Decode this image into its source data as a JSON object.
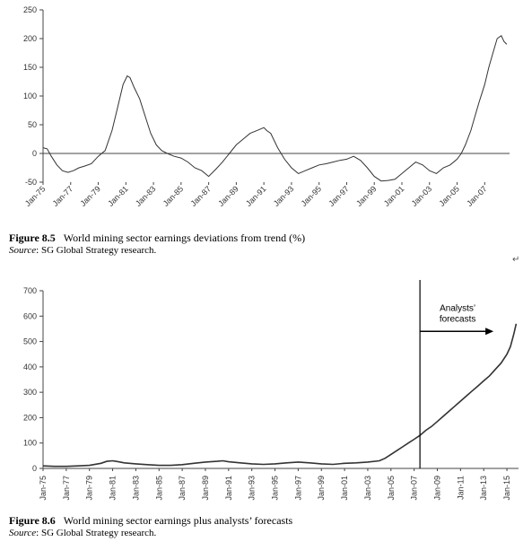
{
  "figure1": {
    "number": "Figure 8.5",
    "title": "World mining sector earnings deviations from trend (%)",
    "source_label": "Source",
    "source_text": ": SG Global Strategy research."
  },
  "figure2": {
    "number": "Figure 8.6",
    "title": "World mining sector earnings plus analysts’ forecasts",
    "source_label": "Source",
    "source_text": ": SG Global Strategy research."
  },
  "edit_mark": "↵",
  "chart_data": [
    {
      "type": "line",
      "title": "",
      "xlabel": "",
      "ylabel": "",
      "xlim": [
        1975,
        2008.8
      ],
      "ylim": [
        -50,
        250
      ],
      "yticks": [
        -50,
        0,
        50,
        100,
        150,
        200,
        250
      ],
      "xtick_labels": [
        "Jan-75",
        "Jan-77",
        "Jan-79",
        "Jan-81",
        "Jan-83",
        "Jan-85",
        "Jan-87",
        "Jan-89",
        "Jan-91",
        "Jan-93",
        "Jan-95",
        "Jan-97",
        "Jan-99",
        "Jan-01",
        "Jan-03",
        "Jan-05",
        "Jan-07"
      ],
      "xtick_values": [
        1975,
        1977,
        1979,
        1981,
        1983,
        1985,
        1987,
        1989,
        1991,
        1993,
        1995,
        1997,
        1999,
        2001,
        2003,
        2005,
        2007
      ],
      "grid": false,
      "zero_line": true,
      "series": [
        {
          "x": [
            1975,
            1975.3,
            1975.6,
            1976,
            1976.4,
            1976.8,
            1977.2,
            1977.6,
            1978,
            1978.5,
            1979,
            1979.5,
            1980,
            1980.4,
            1980.8,
            1981.1,
            1981.3,
            1981.6,
            1982,
            1982.4,
            1982.8,
            1983.2,
            1983.6,
            1984,
            1984.5,
            1985,
            1985.5,
            1986,
            1986.5,
            1987,
            1987.5,
            1988,
            1988.5,
            1989,
            1989.5,
            1990,
            1990.5,
            1991,
            1991.2,
            1991.5,
            1992,
            1992.5,
            1993,
            1993.5,
            1994,
            1994.5,
            1995,
            1995.5,
            1996,
            1996.5,
            1997,
            1997.5,
            1998,
            1998.5,
            1999,
            1999.5,
            2000,
            2000.5,
            2001,
            2001.5,
            2002,
            2002.5,
            2003,
            2003.5,
            2004,
            2004.5,
            2005,
            2005.3,
            2005.6,
            2006,
            2006.3,
            2006.6,
            2007,
            2007.3,
            2007.6,
            2007.9,
            2008.2,
            2008.4,
            2008.6
          ],
          "y": [
            10,
            8,
            -5,
            -20,
            -30,
            -33,
            -30,
            -25,
            -22,
            -18,
            -5,
            5,
            40,
            80,
            120,
            135,
            132,
            115,
            95,
            65,
            35,
            15,
            5,
            0,
            -5,
            -8,
            -15,
            -25,
            -30,
            -40,
            -28,
            -15,
            0,
            15,
            25,
            35,
            40,
            45,
            40,
            35,
            10,
            -10,
            -25,
            -35,
            -30,
            -25,
            -20,
            -18,
            -15,
            -12,
            -10,
            -5,
            -12,
            -25,
            -40,
            -48,
            -47,
            -45,
            -35,
            -25,
            -15,
            -20,
            -30,
            -35,
            -25,
            -20,
            -10,
            0,
            15,
            40,
            65,
            90,
            120,
            150,
            175,
            200,
            205,
            195,
            190
          ]
        }
      ]
    },
    {
      "type": "line",
      "title": "",
      "xlabel": "",
      "ylabel": "",
      "xlim": [
        1975,
        2016
      ],
      "ylim": [
        0,
        700
      ],
      "yticks": [
        0,
        100,
        200,
        300,
        400,
        500,
        600,
        700
      ],
      "xtick_labels": [
        "Jan-75",
        "Jan-77",
        "Jan-79",
        "Jan-81",
        "Jan-83",
        "Jan-85",
        "Jan-87",
        "Jan-89",
        "Jan-91",
        "Jan-93",
        "Jan-95",
        "Jan-97",
        "Jan-99",
        "Jan-01",
        "Jan-03",
        "Jan-05",
        "Jan-07",
        "Jan-09",
        "Jan-11",
        "Jan-13",
        "Jan-15"
      ],
      "xtick_values": [
        1975,
        1977,
        1979,
        1981,
        1983,
        1985,
        1987,
        1989,
        1991,
        1993,
        1995,
        1997,
        1999,
        2001,
        2003,
        2005,
        2007,
        2009,
        2011,
        2013,
        2015
      ],
      "grid": false,
      "annotation": {
        "text_line1": "Analysts’",
        "text_line2": "forecasts",
        "x": 2007.5
      },
      "series": [
        {
          "x": [
            1975,
            1976,
            1977,
            1978,
            1979,
            1980,
            1980.5,
            1981,
            1981.5,
            1982,
            1983,
            1984,
            1985,
            1986,
            1987,
            1988,
            1989,
            1990,
            1990.5,
            1991,
            1992,
            1993,
            1994,
            1995,
            1996,
            1997,
            1998,
            1999,
            2000,
            2001,
            2002,
            2003,
            2004,
            2004.5,
            2005,
            2005.5,
            2006,
            2006.5,
            2007,
            2007.5,
            2008,
            2008.5,
            2009,
            2009.5,
            2010,
            2010.5,
            2011,
            2011.5,
            2012,
            2012.5,
            2013,
            2013.5,
            2014,
            2014.5,
            2015,
            2015.3,
            2015.6,
            2015.8
          ],
          "y": [
            10,
            8,
            8,
            10,
            12,
            20,
            28,
            30,
            26,
            22,
            18,
            15,
            12,
            12,
            15,
            20,
            25,
            28,
            30,
            26,
            22,
            18,
            16,
            18,
            22,
            25,
            22,
            18,
            16,
            20,
            22,
            25,
            30,
            40,
            55,
            70,
            85,
            100,
            115,
            130,
            150,
            165,
            185,
            205,
            225,
            245,
            265,
            285,
            305,
            325,
            345,
            365,
            390,
            415,
            450,
            480,
            530,
            570
          ]
        }
      ]
    }
  ]
}
